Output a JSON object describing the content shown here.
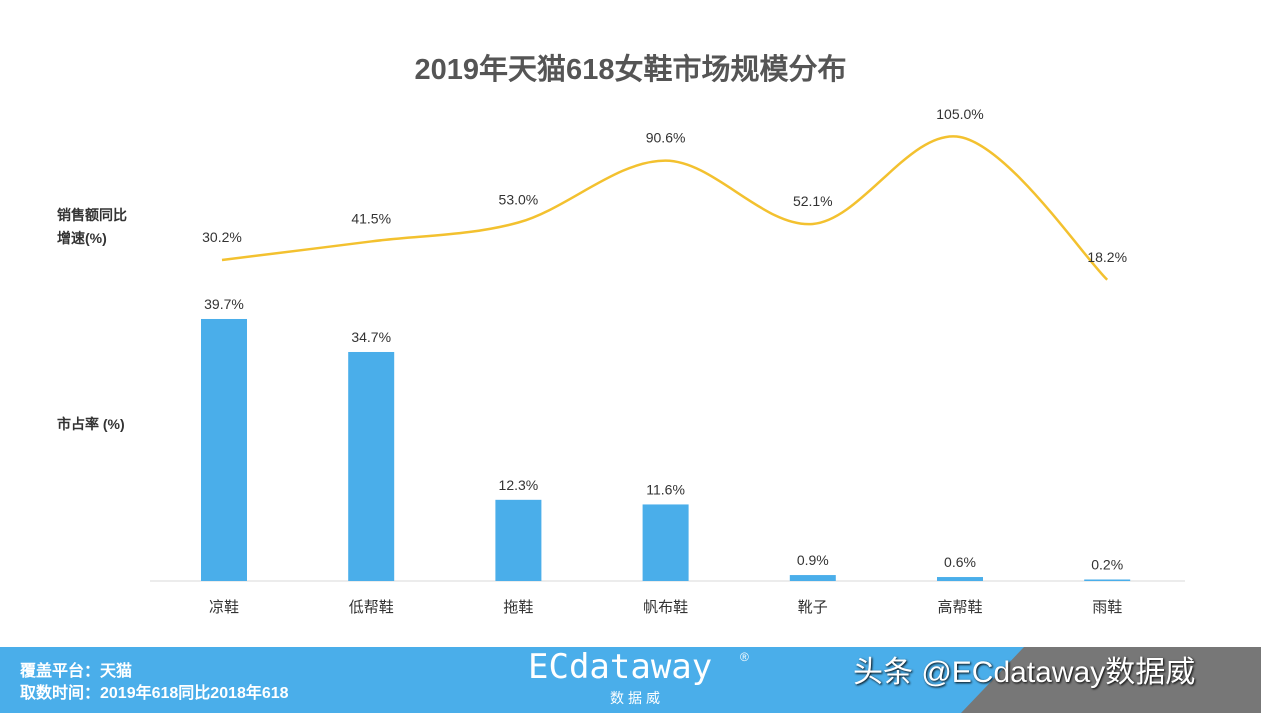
{
  "chart_data": {
    "type": "bar+line",
    "title": "2019年天猫618女鞋市场规模分布",
    "categories": [
      "凉鞋",
      "低帮鞋",
      "拖鞋",
      "帆布鞋",
      "靴子",
      "高帮鞋",
      "雨鞋"
    ],
    "series": [
      {
        "name": "市占率 (%)",
        "type": "bar",
        "values": [
          39.7,
          34.7,
          12.3,
          11.6,
          0.9,
          0.6,
          0.2
        ],
        "labels": [
          "39.7%",
          "34.7%",
          "12.3%",
          "11.6%",
          "0.9%",
          "0.6%",
          "0.2%"
        ],
        "color": "#4aaeea"
      },
      {
        "name": "销售额同比\n增速(%)",
        "type": "line",
        "values": [
          30.2,
          41.5,
          53.0,
          90.6,
          52.1,
          105.0,
          18.2
        ],
        "labels": [
          "30.2%",
          "41.5%",
          "53.0%",
          "90.6%",
          "52.1%",
          "105.0%",
          "18.2%"
        ],
        "color": "#f3c12f"
      }
    ]
  },
  "footer": {
    "platform": "覆盖平台：天猫",
    "period": "取数时间：2019年618同比2018年618",
    "logo": "ECdataway",
    "logo_sub": "数据威",
    "registered": "®",
    "toutiao": "头条 @ECdataway数据威"
  }
}
